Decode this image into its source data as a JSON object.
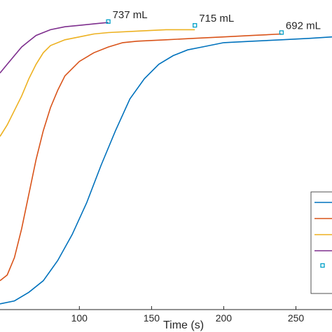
{
  "chart_data": {
    "type": "line",
    "xlabel": "Time (s)",
    "ylabel": "",
    "xlim": [
      45,
      275
    ],
    "x_ticks": [
      100,
      150,
      200,
      250
    ],
    "x_tick_labels": [
      "100",
      "150",
      "200",
      "250"
    ],
    "grid": false,
    "legend_position": "right",
    "colors": {
      "series1": "#0072BD",
      "series2": "#D95319",
      "series3": "#EDB120",
      "series4": "#7E2F8E",
      "marker": "#00A0C8"
    },
    "series": [
      {
        "points": [
          [
            45,
            0.02
          ],
          [
            55,
            0.03
          ],
          [
            65,
            0.06
          ],
          [
            75,
            0.1
          ],
          [
            85,
            0.17
          ],
          [
            95,
            0.26
          ],
          [
            105,
            0.37
          ],
          [
            115,
            0.5
          ],
          [
            125,
            0.62
          ],
          [
            135,
            0.73
          ],
          [
            145,
            0.8
          ],
          [
            155,
            0.85
          ],
          [
            165,
            0.88
          ],
          [
            175,
            0.9
          ],
          [
            185,
            0.91
          ],
          [
            200,
            0.925
          ],
          [
            220,
            0.93
          ],
          [
            240,
            0.935
          ],
          [
            260,
            0.94
          ],
          [
            275,
            0.945
          ]
        ]
      },
      {
        "points": [
          [
            45,
            0.1
          ],
          [
            50,
            0.12
          ],
          [
            55,
            0.18
          ],
          [
            60,
            0.28
          ],
          [
            65,
            0.4
          ],
          [
            70,
            0.52
          ],
          [
            75,
            0.62
          ],
          [
            80,
            0.7
          ],
          [
            85,
            0.76
          ],
          [
            90,
            0.81
          ],
          [
            100,
            0.86
          ],
          [
            110,
            0.89
          ],
          [
            120,
            0.91
          ],
          [
            130,
            0.925
          ],
          [
            140,
            0.93
          ],
          [
            160,
            0.935
          ],
          [
            180,
            0.94
          ],
          [
            200,
            0.945
          ],
          [
            220,
            0.95
          ],
          [
            240,
            0.955
          ]
        ]
      },
      {
        "points": [
          [
            45,
            0.6
          ],
          [
            50,
            0.64
          ],
          [
            55,
            0.69
          ],
          [
            60,
            0.74
          ],
          [
            65,
            0.8
          ],
          [
            70,
            0.85
          ],
          [
            75,
            0.89
          ],
          [
            80,
            0.915
          ],
          [
            90,
            0.935
          ],
          [
            100,
            0.945
          ],
          [
            110,
            0.955
          ],
          [
            120,
            0.96
          ],
          [
            140,
            0.965
          ],
          [
            160,
            0.97
          ],
          [
            180,
            0.97
          ]
        ]
      },
      {
        "points": [
          [
            45,
            0.82
          ],
          [
            50,
            0.85
          ],
          [
            55,
            0.88
          ],
          [
            60,
            0.91
          ],
          [
            65,
            0.93
          ],
          [
            70,
            0.95
          ],
          [
            80,
            0.97
          ],
          [
            90,
            0.98
          ],
          [
            100,
            0.985
          ],
          [
            110,
            0.99
          ],
          [
            120,
            0.995
          ]
        ]
      }
    ],
    "markers": [
      {
        "x": 120,
        "y": 0.998,
        "label": "737 mL"
      },
      {
        "x": 180,
        "y": 0.985,
        "label": "715 mL"
      },
      {
        "x": 240,
        "y": 0.96,
        "label": "692 mL"
      }
    ]
  }
}
